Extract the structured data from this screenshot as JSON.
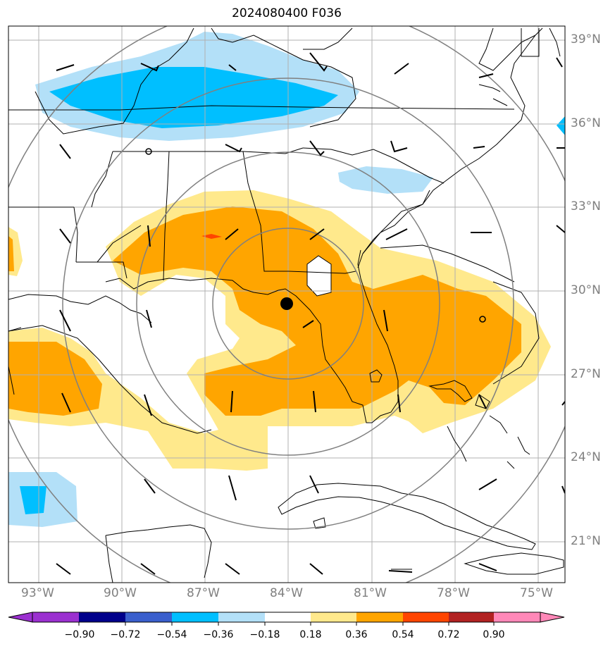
{
  "title": "2024080400 F036",
  "map": {
    "lat_labels": [
      "39°N",
      "36°N",
      "33°N",
      "30°N",
      "27°N",
      "24°N",
      "21°N"
    ],
    "lon_labels": [
      "93°W",
      "90°W",
      "87°W",
      "84°W",
      "81°W",
      "78°W",
      "75°W"
    ],
    "center_marker": {
      "lon": -84.0,
      "lat": 29.5
    },
    "range_rings": 4
  },
  "colorbar": {
    "tick_labels": [
      "−0.90",
      "−0.72",
      "−0.54",
      "−0.36",
      "−0.18",
      "0.18",
      "0.36",
      "0.54",
      "0.72",
      "0.90"
    ],
    "colors": [
      "#9b30d0",
      "#00008b",
      "#3a5fcd",
      "#00bfff",
      "#b3e0f8",
      "#ffffff",
      "#ffe98c",
      "#ffa500",
      "#ff4500",
      "#b22222",
      "#ff88b8"
    ]
  },
  "fill_colors": {
    "light_blue": "#b3e0f8",
    "blue": "#00bfff",
    "light_yellow": "#ffe98c",
    "orange": "#ffa500",
    "red": "#ff4500"
  }
}
